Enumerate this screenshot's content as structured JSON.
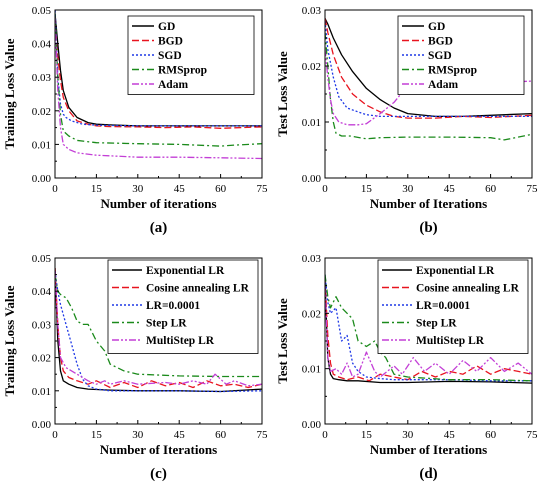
{
  "chart_data": [
    {
      "type": "line",
      "panel_label": "(a)",
      "xlabel": "Number of iterations",
      "ylabel": "Training Loss Value",
      "xlim": [
        0,
        75
      ],
      "ylim": [
        0.0,
        0.05
      ],
      "xticks": [
        "0",
        "15",
        "30",
        "45",
        "60",
        "75"
      ],
      "yticks": [
        "0.00",
        "0.01",
        "0.02",
        "0.03",
        "0.04",
        "0.05"
      ],
      "grid": false,
      "legend_position": "top-right",
      "series": [
        {
          "name": "GD",
          "color": "#000000",
          "dash": "solid",
          "x": [
            0,
            1,
            2,
            3,
            5,
            8,
            12,
            15,
            20,
            30,
            45,
            60,
            75
          ],
          "y": [
            0.049,
            0.04,
            0.032,
            0.026,
            0.021,
            0.018,
            0.0165,
            0.016,
            0.0158,
            0.0155,
            0.0155,
            0.0155,
            0.0155
          ]
        },
        {
          "name": "BGD",
          "color": "#e8141f",
          "dash": "dash",
          "x": [
            0,
            1,
            2,
            3,
            5,
            8,
            12,
            15,
            20,
            30,
            40,
            50,
            60,
            75
          ],
          "y": [
            0.046,
            0.036,
            0.029,
            0.024,
            0.02,
            0.017,
            0.016,
            0.0155,
            0.0153,
            0.0152,
            0.015,
            0.0152,
            0.0148,
            0.0152
          ]
        },
        {
          "name": "SGD",
          "color": "#1e38e6",
          "dash": "dot",
          "x": [
            0,
            1,
            2,
            3,
            4,
            6,
            10,
            15,
            30,
            45,
            60,
            75
          ],
          "y": [
            0.051,
            0.03,
            0.022,
            0.019,
            0.018,
            0.017,
            0.016,
            0.0157,
            0.0155,
            0.0155,
            0.0155,
            0.0155
          ]
        },
        {
          "name": "RMSprop",
          "color": "#1b8a1b",
          "dash": "dashdot",
          "x": [
            0,
            1,
            2,
            3,
            5,
            8,
            15,
            30,
            45,
            60,
            65,
            75
          ],
          "y": [
            0.049,
            0.03,
            0.019,
            0.014,
            0.0125,
            0.0112,
            0.0105,
            0.0102,
            0.01,
            0.0095,
            0.0098,
            0.0102
          ]
        },
        {
          "name": "Adam",
          "color": "#c33fd6",
          "dash": "dashdotdot",
          "x": [
            0,
            1,
            2,
            3,
            5,
            8,
            15,
            25,
            30,
            45,
            60,
            75
          ],
          "y": [
            0.048,
            0.026,
            0.015,
            0.01,
            0.0085,
            0.0075,
            0.0068,
            0.0064,
            0.0062,
            0.0062,
            0.006,
            0.0058
          ]
        }
      ]
    },
    {
      "type": "line",
      "panel_label": "(b)",
      "xlabel": "Number of Iterations",
      "ylabel": "Test Loss Value",
      "xlim": [
        0,
        75
      ],
      "ylim": [
        0.0,
        0.03
      ],
      "xticks": [
        "0",
        "15",
        "30",
        "45",
        "60",
        "75"
      ],
      "yticks": [
        "0.00",
        "0.01",
        "0.02",
        "0.03"
      ],
      "grid": false,
      "legend_position": "top-right",
      "series": [
        {
          "name": "GD",
          "color": "#000000",
          "dash": "solid",
          "x": [
            0,
            1,
            3,
            6,
            10,
            15,
            20,
            25,
            30,
            40,
            50,
            60,
            75
          ],
          "y": [
            0.0285,
            0.0275,
            0.025,
            0.022,
            0.019,
            0.016,
            0.014,
            0.0125,
            0.0115,
            0.011,
            0.011,
            0.0112,
            0.0115
          ]
        },
        {
          "name": "BGD",
          "color": "#e8141f",
          "dash": "dash",
          "x": [
            0,
            1,
            3,
            6,
            10,
            15,
            20,
            25,
            30,
            40,
            50,
            60,
            75
          ],
          "y": [
            0.0285,
            0.026,
            0.022,
            0.018,
            0.015,
            0.013,
            0.0118,
            0.011,
            0.0107,
            0.0107,
            0.011,
            0.0108,
            0.0112
          ]
        },
        {
          "name": "SGD",
          "color": "#1e38e6",
          "dash": "dot",
          "x": [
            0,
            1,
            3,
            5,
            8,
            12,
            15,
            20,
            30,
            45,
            60,
            75
          ],
          "y": [
            0.028,
            0.023,
            0.018,
            0.0145,
            0.0125,
            0.0118,
            0.0113,
            0.011,
            0.011,
            0.011,
            0.011,
            0.011
          ]
        },
        {
          "name": "RMSprop",
          "color": "#1b8a1b",
          "dash": "dashdot",
          "x": [
            0,
            1,
            2,
            3,
            4,
            6,
            9,
            15,
            20,
            30,
            45,
            60,
            65,
            75
          ],
          "y": [
            0.026,
            0.02,
            0.014,
            0.01,
            0.008,
            0.0075,
            0.0075,
            0.007,
            0.0072,
            0.0073,
            0.0073,
            0.0072,
            0.0068,
            0.0078
          ]
        },
        {
          "name": "Adam",
          "color": "#c33fd6",
          "dash": "dashdotdot",
          "x": [
            0,
            1,
            2,
            3,
            5,
            8,
            12,
            15,
            20,
            25,
            30,
            45,
            60,
            75
          ],
          "y": [
            0.023,
            0.018,
            0.014,
            0.0115,
            0.01,
            0.0095,
            0.0095,
            0.0097,
            0.0115,
            0.0135,
            0.0165,
            0.017,
            0.017,
            0.0173
          ]
        }
      ]
    },
    {
      "type": "line",
      "panel_label": "(c)",
      "xlabel": "Number of Iterations",
      "ylabel": "Training Loss Value",
      "xlim": [
        0,
        75
      ],
      "ylim": [
        0.0,
        0.05
      ],
      "xticks": [
        "0",
        "15",
        "30",
        "45",
        "60",
        "75"
      ],
      "yticks": [
        "0.00",
        "0.01",
        "0.02",
        "0.03",
        "0.04",
        "0.05"
      ],
      "grid": false,
      "legend_position": "top-right",
      "series": [
        {
          "name": "Exponential LR",
          "color": "#000000",
          "dash": "solid",
          "x": [
            0,
            1,
            2,
            3,
            5,
            8,
            12,
            20,
            30,
            45,
            60,
            75
          ],
          "y": [
            0.047,
            0.025,
            0.016,
            0.013,
            0.012,
            0.011,
            0.0105,
            0.0102,
            0.01,
            0.01,
            0.0098,
            0.0105
          ]
        },
        {
          "name": "Cosine annealing LR",
          "color": "#e8141f",
          "dash": "dash",
          "x": [
            0,
            1,
            2,
            3,
            5,
            8,
            12,
            15,
            20,
            25,
            30,
            35,
            40,
            45,
            50,
            55,
            60,
            65,
            70,
            75
          ],
          "y": [
            0.047,
            0.03,
            0.02,
            0.016,
            0.014,
            0.013,
            0.012,
            0.013,
            0.011,
            0.0125,
            0.011,
            0.013,
            0.0115,
            0.0125,
            0.011,
            0.013,
            0.0115,
            0.012,
            0.011,
            0.012
          ]
        },
        {
          "name": "LR=0.0001",
          "color": "#1e38e6",
          "dash": "dot",
          "x": [
            0,
            1,
            2,
            4,
            6,
            8,
            10,
            12,
            15,
            20,
            30,
            45,
            60,
            75
          ],
          "y": [
            0.046,
            0.04,
            0.036,
            0.03,
            0.024,
            0.018,
            0.0135,
            0.0115,
            0.0105,
            0.01,
            0.01,
            0.01,
            0.0098,
            0.01
          ]
        },
        {
          "name": "Step LR",
          "color": "#1b8a1b",
          "dash": "dashdot",
          "x": [
            0,
            1,
            2,
            4,
            6,
            8,
            10,
            12,
            15,
            18,
            20,
            25,
            30,
            45,
            60,
            75
          ],
          "y": [
            0.045,
            0.04,
            0.039,
            0.038,
            0.035,
            0.031,
            0.03,
            0.03,
            0.025,
            0.022,
            0.018,
            0.016,
            0.015,
            0.0145,
            0.0143,
            0.0143
          ]
        },
        {
          "name": "MultiStep LR",
          "color": "#c33fd6",
          "dash": "dashdotdot",
          "x": [
            0,
            1,
            2,
            4,
            6,
            8,
            10,
            12,
            15,
            18,
            20,
            25,
            30,
            40,
            45,
            50,
            55,
            58,
            62,
            65,
            70,
            75
          ],
          "y": [
            0.046,
            0.03,
            0.02,
            0.017,
            0.016,
            0.015,
            0.014,
            0.013,
            0.012,
            0.013,
            0.012,
            0.013,
            0.012,
            0.0125,
            0.012,
            0.013,
            0.012,
            0.015,
            0.012,
            0.013,
            0.0115,
            0.012
          ]
        }
      ]
    },
    {
      "type": "line",
      "panel_label": "(d)",
      "xlabel": "Number of Iterations",
      "ylabel": "Test Loss Value",
      "xlim": [
        0,
        75
      ],
      "ylim": [
        0.0,
        0.03
      ],
      "xticks": [
        "0",
        "15",
        "30",
        "45",
        "60",
        "75"
      ],
      "yticks": [
        "0.00",
        "0.01",
        "0.02",
        "0.03"
      ],
      "grid": false,
      "legend_position": "top-right",
      "series": [
        {
          "name": "Exponential LR",
          "color": "#000000",
          "dash": "solid",
          "x": [
            0,
            1,
            2,
            3,
            5,
            8,
            12,
            20,
            30,
            45,
            60,
            75
          ],
          "y": [
            0.026,
            0.012,
            0.009,
            0.0082,
            0.008,
            0.0078,
            0.0078,
            0.0075,
            0.0075,
            0.0077,
            0.0076,
            0.0074
          ]
        },
        {
          "name": "Cosine annealing LR",
          "color": "#e8141f",
          "dash": "dash",
          "x": [
            0,
            1,
            2,
            3,
            5,
            8,
            12,
            16,
            20,
            25,
            30,
            35,
            40,
            45,
            50,
            55,
            60,
            65,
            70,
            75
          ],
          "y": [
            0.026,
            0.016,
            0.011,
            0.009,
            0.0085,
            0.008,
            0.0085,
            0.0078,
            0.009,
            0.0085,
            0.008,
            0.0095,
            0.0085,
            0.0095,
            0.009,
            0.0105,
            0.009,
            0.01,
            0.0095,
            0.009
          ]
        },
        {
          "name": "LR=0.0001",
          "color": "#1e38e6",
          "dash": "dot",
          "x": [
            0,
            1,
            2,
            4,
            6,
            8,
            10,
            12,
            15,
            20,
            25,
            30,
            45,
            60,
            75
          ],
          "y": [
            0.027,
            0.022,
            0.02,
            0.021,
            0.015,
            0.016,
            0.011,
            0.0095,
            0.0085,
            0.0082,
            0.008,
            0.008,
            0.008,
            0.0078,
            0.0078
          ]
        },
        {
          "name": "Step LR",
          "color": "#1b8a1b",
          "dash": "dashdot",
          "x": [
            0,
            1,
            2,
            4,
            6,
            8,
            10,
            12,
            15,
            18,
            20,
            22,
            25,
            30,
            45,
            60,
            75
          ],
          "y": [
            0.027,
            0.023,
            0.021,
            0.023,
            0.021,
            0.02,
            0.019,
            0.015,
            0.014,
            0.015,
            0.013,
            0.012,
            0.009,
            0.0085,
            0.008,
            0.008,
            0.0078
          ]
        },
        {
          "name": "MultiStep LR",
          "color": "#c33fd6",
          "dash": "dashdotdot",
          "x": [
            0,
            1,
            2,
            4,
            6,
            8,
            10,
            12,
            15,
            18,
            20,
            25,
            28,
            32,
            36,
            40,
            45,
            50,
            55,
            60,
            65,
            70,
            75
          ],
          "y": [
            0.025,
            0.012,
            0.0095,
            0.01,
            0.009,
            0.011,
            0.0085,
            0.009,
            0.013,
            0.0095,
            0.0085,
            0.0105,
            0.009,
            0.012,
            0.0095,
            0.011,
            0.009,
            0.0115,
            0.0095,
            0.012,
            0.0095,
            0.011,
            0.009
          ]
        }
      ]
    }
  ]
}
